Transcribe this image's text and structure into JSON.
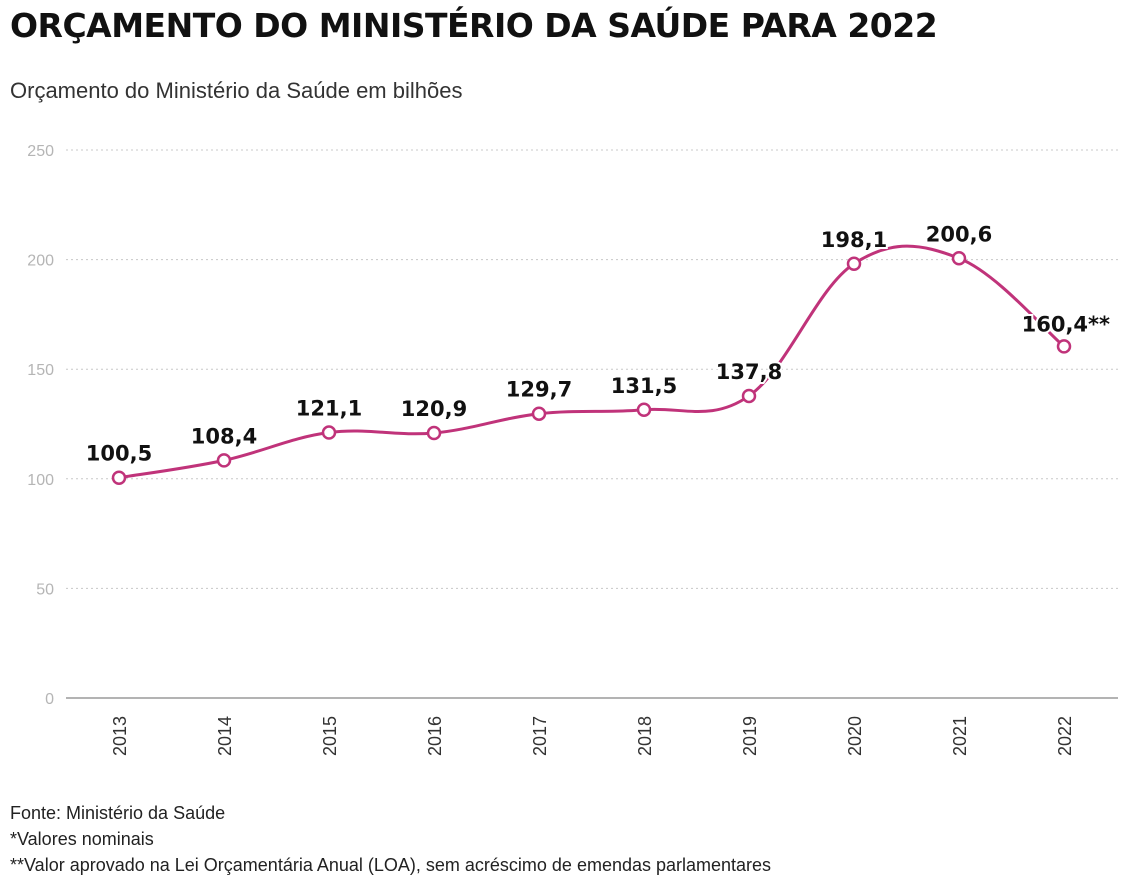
{
  "chart_data": {
    "type": "line",
    "title": "ORÇAMENTO DO MINISTÉRIO DA SAÚDE PARA 2022",
    "subtitle": "Orçamento do Ministério da Saúde em bilhões",
    "categories": [
      "2013",
      "2014",
      "2015",
      "2016",
      "2017",
      "2018",
      "2019",
      "2020",
      "2021",
      "2022"
    ],
    "values": [
      100.5,
      108.4,
      121.1,
      120.9,
      129.7,
      131.5,
      137.8,
      198.1,
      200.6,
      160.4
    ],
    "data_labels": [
      "100,5",
      "108,4",
      "121,1",
      "120,9",
      "129,7",
      "131,5",
      "137,8",
      "198,1",
      "200,6",
      "160,4**"
    ],
    "yticks": [
      0,
      50,
      100,
      150,
      200,
      250
    ],
    "ytick_labels": [
      "0",
      "50",
      "100",
      "150",
      "200",
      "250"
    ],
    "ylim": [
      0,
      250
    ],
    "xlabel": "",
    "ylabel": "",
    "grid": true,
    "line_color": "#c0337a"
  },
  "footer": {
    "source": "Fonte: Ministério da Saúde",
    "note1": "*Valores nominais",
    "note2": "**Valor aprovado na Lei Orçamentária Anual (LOA), sem acréscimo de emendas parlamentares"
  }
}
